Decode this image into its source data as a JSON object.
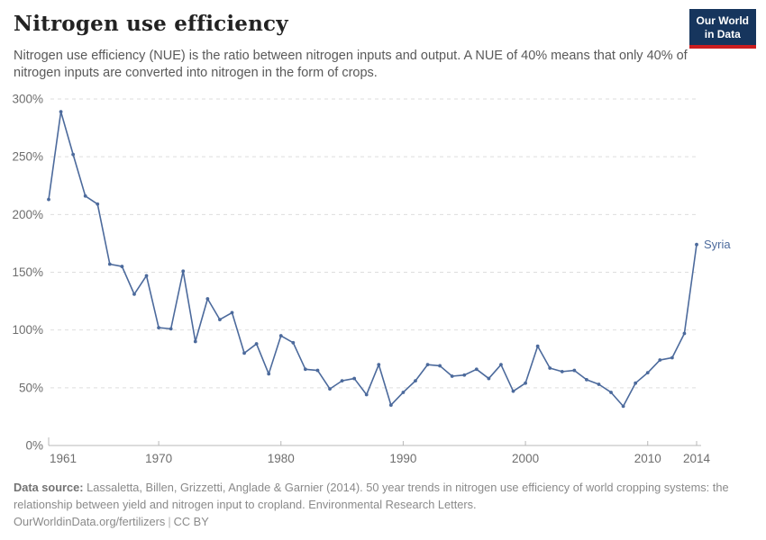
{
  "header": {
    "title": "Nitrogen use efficiency",
    "subtitle": "Nitrogen use efficiency (NUE) is the ratio between nitrogen inputs and output. A NUE of 40% means that only 40% of nitrogen inputs are converted into nitrogen in the form of crops.",
    "logo": {
      "line1": "Our World",
      "line2": "in Data",
      "bg_color": "#16355d",
      "accent_color": "#cb1d1f"
    }
  },
  "chart_data": {
    "type": "line",
    "title": "Nitrogen use efficiency",
    "xlabel": "",
    "ylabel": "",
    "xlim": [
      1961,
      2014
    ],
    "ylim": [
      0,
      300
    ],
    "x_ticks": [
      1961,
      1970,
      1980,
      1990,
      2000,
      2010,
      2014
    ],
    "y_ticks": [
      0,
      50,
      100,
      150,
      200,
      250,
      300
    ],
    "y_tick_format": "%",
    "grid": "horizontal-dashed",
    "legend_position": "end-of-line-label",
    "x": [
      1961,
      1962,
      1963,
      1964,
      1965,
      1966,
      1967,
      1968,
      1969,
      1970,
      1971,
      1972,
      1973,
      1974,
      1975,
      1976,
      1977,
      1978,
      1979,
      1980,
      1981,
      1982,
      1983,
      1984,
      1985,
      1986,
      1987,
      1988,
      1989,
      1990,
      1991,
      1992,
      1993,
      1994,
      1995,
      1996,
      1997,
      1998,
      1999,
      2000,
      2001,
      2002,
      2003,
      2004,
      2005,
      2006,
      2007,
      2008,
      2009,
      2010,
      2011,
      2012,
      2013,
      2014
    ],
    "series": [
      {
        "name": "Syria",
        "color": "#4c6a9c",
        "values": [
          213,
          289,
          252,
          216,
          209,
          157,
          155,
          131,
          147,
          102,
          101,
          151,
          90,
          127,
          109,
          115,
          80,
          88,
          62,
          95,
          89,
          66,
          65,
          49,
          56,
          58,
          44,
          70,
          35,
          46,
          56,
          70,
          69,
          60,
          61,
          66,
          58,
          70,
          47,
          54,
          86,
          67,
          64,
          65,
          57,
          53,
          46,
          34,
          54,
          63,
          74,
          76,
          97,
          174
        ]
      }
    ]
  },
  "footer": {
    "source_label": "Data source:",
    "source_text": " Lassaletta, Billen, Grizzetti, Anglade & Garnier (2014). 50 year trends in nitrogen use efficiency of world cropping systems: the relationship between yield and nitrogen input to cropland. Environmental Research Letters.",
    "link_text": "OurWorldinData.org/fertilizers",
    "separator": "|",
    "license_text": "CC BY"
  }
}
